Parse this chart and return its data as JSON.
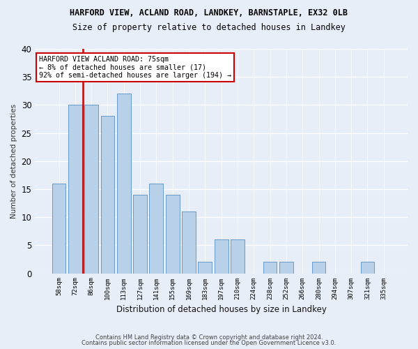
{
  "title1": "HARFORD VIEW, ACLAND ROAD, LANDKEY, BARNSTAPLE, EX32 0LB",
  "title2": "Size of property relative to detached houses in Landkey",
  "xlabel": "Distribution of detached houses by size in Landkey",
  "ylabel": "Number of detached properties",
  "categories": [
    "58sqm",
    "72sqm",
    "86sqm",
    "100sqm",
    "113sqm",
    "127sqm",
    "141sqm",
    "155sqm",
    "169sqm",
    "183sqm",
    "197sqm",
    "210sqm",
    "224sqm",
    "238sqm",
    "252sqm",
    "266sqm",
    "280sqm",
    "294sqm",
    "307sqm",
    "321sqm",
    "335sqm"
  ],
  "values": [
    16,
    30,
    30,
    28,
    32,
    14,
    16,
    14,
    11,
    2,
    6,
    6,
    0,
    2,
    2,
    0,
    2,
    0,
    0,
    2,
    0
  ],
  "bar_color": "#b8d0e8",
  "bar_edge_color": "#6699cc",
  "highlight_bar_index": 1,
  "highlight_color": "#cc0000",
  "ylim": [
    0,
    40
  ],
  "yticks": [
    0,
    5,
    10,
    15,
    20,
    25,
    30,
    35,
    40
  ],
  "annotation_title": "HARFORD VIEW ACLAND ROAD: 75sqm",
  "annotation_line2": "← 8% of detached houses are smaller (17)",
  "annotation_line3": "92% of semi-detached houses are larger (194) →",
  "annotation_box_color": "#ffffff",
  "annotation_border_color": "#cc0000",
  "background_color": "#e8eef8",
  "grid_color": "#ffffff",
  "ylabel_color": "#333333",
  "footer1": "Contains HM Land Registry data © Crown copyright and database right 2024.",
  "footer2": "Contains public sector information licensed under the Open Government Licence v3.0."
}
